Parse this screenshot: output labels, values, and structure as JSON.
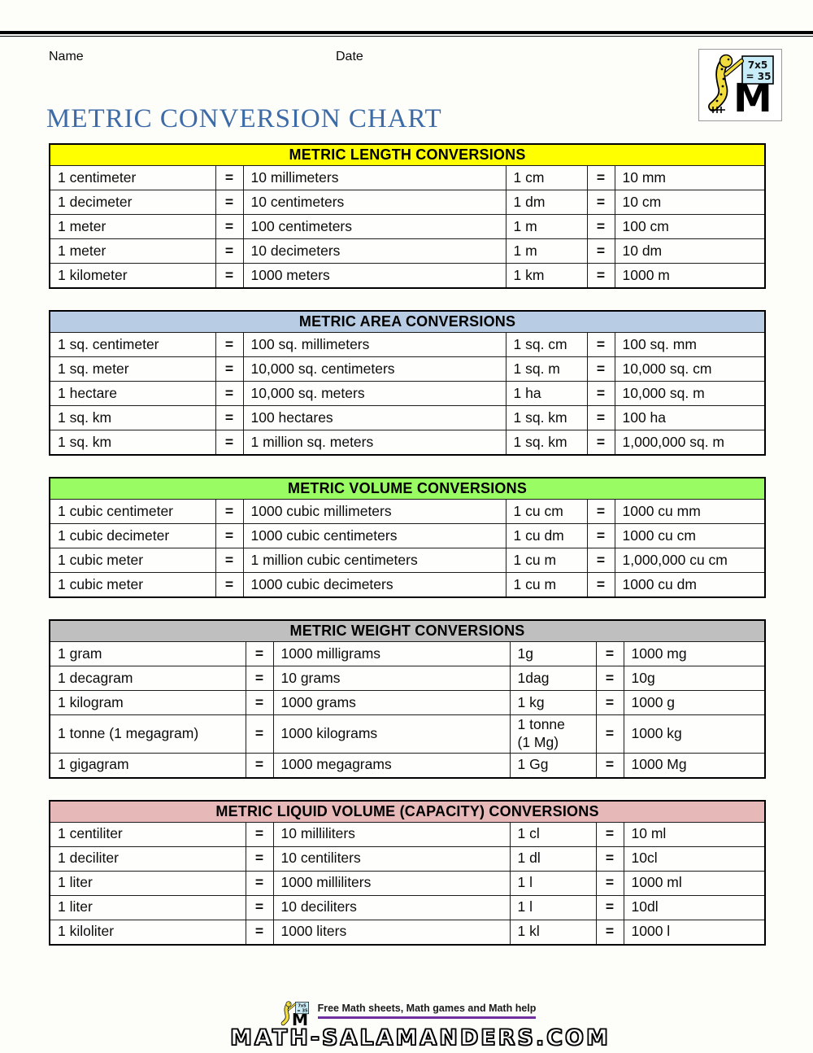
{
  "page": {
    "name_label": "Name",
    "date_label": "Date",
    "title": "METRIC CONVERSION CHART"
  },
  "logo": {
    "board_line1": "7x5",
    "board_line2": "= 35",
    "m_letter": "M"
  },
  "colors": {
    "title_blue": "#3c6ba8",
    "accent_purple": "#7030a0",
    "length_yellow": "#ffff00",
    "area_blue": "#b8cce4",
    "volume_green": "#9afc63",
    "weight_gray": "#bfbfbf",
    "liquid_pink": "#e6b9b8"
  },
  "tables": [
    {
      "title": "METRIC LENGTH CONVERSIONS",
      "header_color": "#ffff00",
      "layout": "a",
      "rows": [
        [
          "1 centimeter",
          "=",
          "10 millimeters",
          "1 cm",
          "=",
          "10 mm"
        ],
        [
          "1 decimeter",
          "=",
          "10 centimeters",
          "1 dm",
          "=",
          "10 cm"
        ],
        [
          "1 meter",
          "=",
          "100 centimeters",
          "1 m",
          "=",
          "100 cm"
        ],
        [
          "1 meter",
          "=",
          "10 decimeters",
          "1 m",
          "=",
          "10 dm"
        ],
        [
          "1 kilometer",
          "=",
          "1000 meters",
          "1 km",
          "=",
          "1000 m"
        ]
      ]
    },
    {
      "title": "METRIC AREA CONVERSIONS",
      "header_color": "#b8cce4",
      "layout": "a",
      "rows": [
        [
          "1 sq. centimeter",
          "=",
          "100 sq. millimeters",
          "1 sq. cm",
          "=",
          "100 sq. mm"
        ],
        [
          "1 sq. meter",
          "=",
          "10,000 sq. centimeters",
          "1 sq. m",
          "=",
          "10,000 sq. cm"
        ],
        [
          "1 hectare",
          "=",
          "10,000 sq. meters",
          "1 ha",
          "=",
          "10,000 sq. m"
        ],
        [
          "1 sq. km",
          "=",
          "100 hectares",
          "1 sq. km",
          "=",
          "100 ha"
        ],
        [
          "1 sq. km",
          "=",
          "1 million sq. meters",
          "1 sq. km",
          "=",
          "1,000,000 sq. m"
        ]
      ]
    },
    {
      "title": "METRIC VOLUME CONVERSIONS",
      "header_color": "#9afc63",
      "layout": "a",
      "rows": [
        [
          "1 cubic centimeter",
          "=",
          "1000 cubic millimeters",
          "1 cu cm",
          "=",
          "1000 cu mm"
        ],
        [
          "1 cubic decimeter",
          "=",
          "1000 cubic centimeters",
          "1 cu dm",
          "=",
          "1000 cu cm"
        ],
        [
          "1 cubic meter",
          "=",
          "1 million cubic centimeters",
          "1 cu m",
          "=",
          "1,000,000 cu cm"
        ],
        [
          "1 cubic meter",
          "=",
          "1000 cubic decimeters",
          "1 cu m",
          "=",
          "1000 cu dm"
        ]
      ]
    },
    {
      "title": "METRIC WEIGHT CONVERSIONS",
      "header_color": "#bfbfbf",
      "layout": "b",
      "rows": [
        [
          "1 gram",
          "=",
          "1000 milligrams",
          "1g",
          "=",
          "1000 mg"
        ],
        [
          "1 decagram",
          "=",
          "10 grams",
          "1dag",
          "=",
          "10g"
        ],
        [
          "1 kilogram",
          "=",
          "1000 grams",
          "1 kg",
          "=",
          "1000 g"
        ],
        [
          "1 tonne (1 megagram)",
          "=",
          "1000 kilograms",
          "1 tonne\n(1 Mg)",
          "=",
          "1000 kg"
        ],
        [
          "1 gigagram",
          "=",
          "1000 megagrams",
          "1 Gg",
          "=",
          "1000 Mg"
        ]
      ]
    },
    {
      "title": "METRIC LIQUID VOLUME (CAPACITY) CONVERSIONS",
      "header_color": "#e6b9b8",
      "layout": "b",
      "rows": [
        [
          "1 centiliter",
          "=",
          "10 milliliters",
          "1 cl",
          "=",
          "10 ml"
        ],
        [
          "1 deciliter",
          "=",
          "10 centiliters",
          "1 dl",
          "=",
          "10cl"
        ],
        [
          "1 liter",
          "=",
          "1000 milliliters",
          "1 l",
          "=",
          "1000 ml"
        ],
        [
          "1 liter",
          "=",
          "10 deciliters",
          "1 l",
          "=",
          "10dl"
        ],
        [
          "1 kiloliter",
          "=",
          "1000 liters",
          "1 kl",
          "=",
          "1000 l"
        ]
      ]
    }
  ],
  "footer": {
    "tagline": "Free Math sheets, Math games and Math help",
    "site": "MATH-SALAMANDERS.COM"
  }
}
